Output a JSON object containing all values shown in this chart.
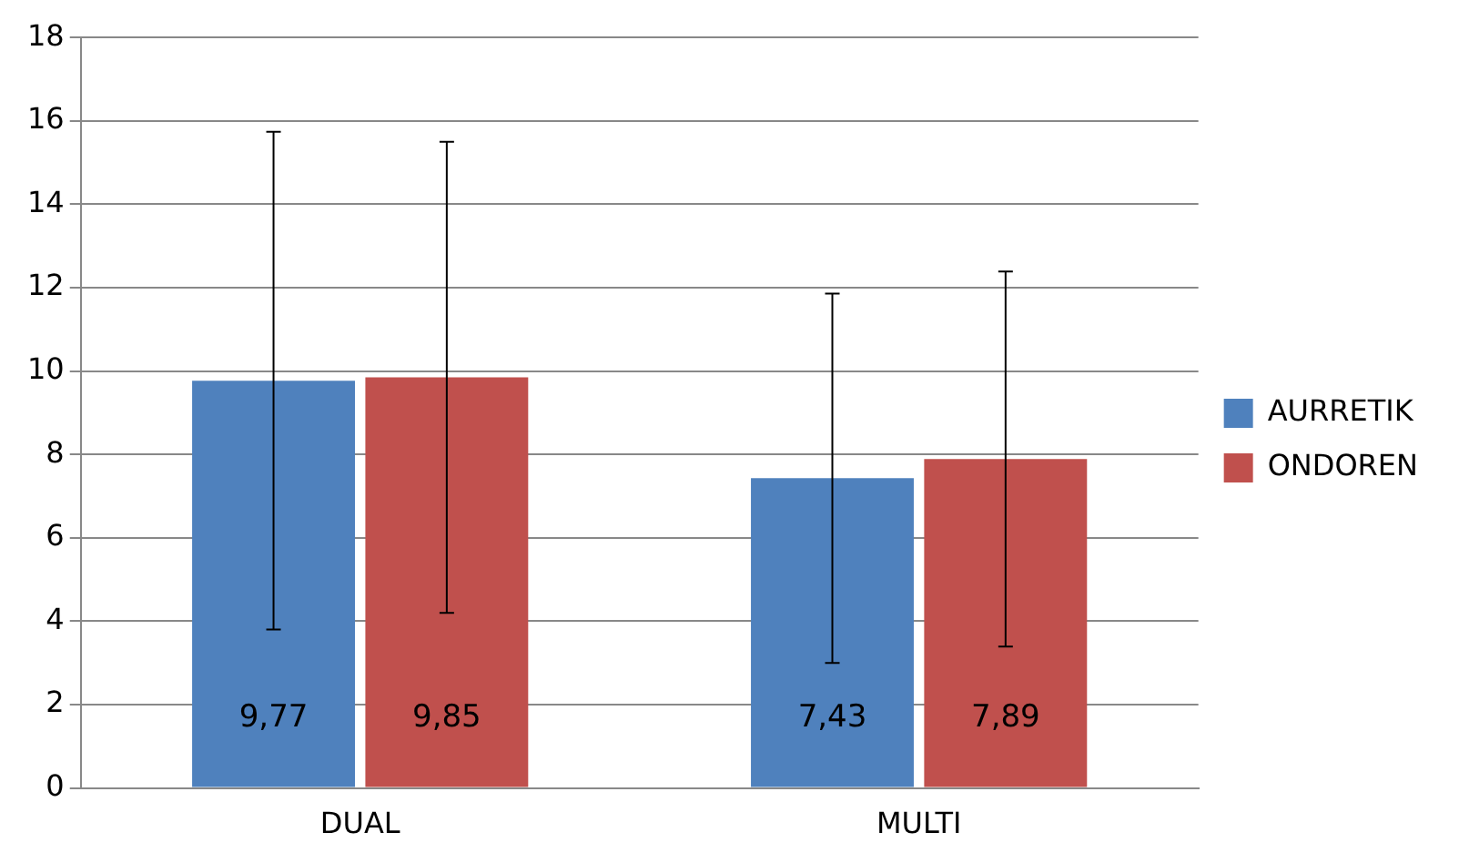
{
  "chart_data": {
    "type": "bar",
    "categories": [
      "DUAL",
      "MULTI"
    ],
    "series": [
      {
        "name": "AURRETIK",
        "color": "#4f81bd",
        "values": [
          9.77,
          7.43
        ],
        "errors": [
          5.97,
          4.43
        ],
        "value_labels": [
          "9,77",
          "7,43"
        ]
      },
      {
        "name": "ONDOREN",
        "color": "#c0504d",
        "values": [
          9.85,
          7.89
        ],
        "errors": [
          5.65,
          4.5
        ],
        "value_labels": [
          "9,85",
          "7,89"
        ]
      }
    ],
    "ylim": [
      0,
      18
    ],
    "yticks": [
      0,
      2,
      4,
      6,
      8,
      10,
      12,
      14,
      16,
      18
    ],
    "grid": "y",
    "legend": "right"
  }
}
